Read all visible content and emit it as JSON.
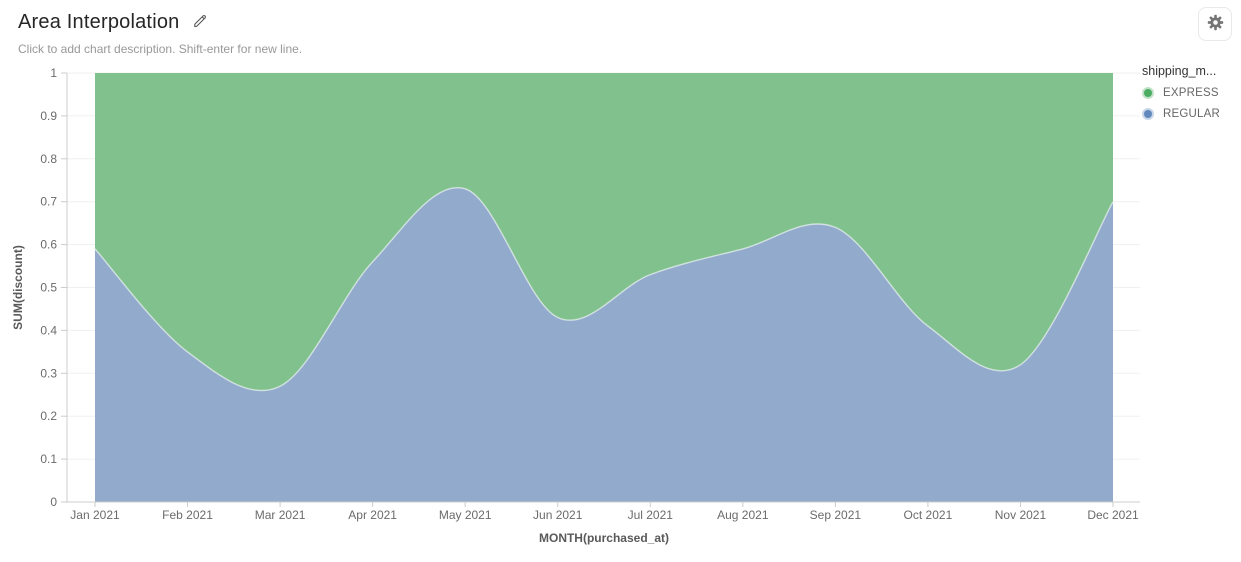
{
  "header": {
    "title": "Area Interpolation",
    "subtitle": "Click to add chart description. Shift-enter for new line."
  },
  "controls": {
    "edit_icon": "pencil-icon",
    "settings_icon": "gear-icon"
  },
  "legend": {
    "title": "shipping_m...",
    "items": [
      {
        "label": "EXPRESS",
        "color": "#4cac62"
      },
      {
        "label": "REGULAR",
        "color": "#6289be"
      }
    ]
  },
  "chart_data": {
    "type": "area",
    "stacked": true,
    "interpolation": "smooth",
    "title": "Area Interpolation",
    "x": [
      "Jan 2021",
      "Feb 2021",
      "Mar 2021",
      "Apr 2021",
      "May 2021",
      "Jun 2021",
      "Jul 2021",
      "Aug 2021",
      "Sep 2021",
      "Oct 2021",
      "Nov 2021",
      "Dec 2021"
    ],
    "series": [
      {
        "name": "REGULAR",
        "values": [
          0.59,
          0.35,
          0.27,
          0.56,
          0.73,
          0.43,
          0.53,
          0.59,
          0.64,
          0.41,
          0.32,
          0.7
        ],
        "area_fill": "#92abcc",
        "legend_color": "#6289be"
      },
      {
        "name": "EXPRESS",
        "values": [
          0.41,
          0.65,
          0.73,
          0.44,
          0.27,
          0.57,
          0.47,
          0.41,
          0.36,
          0.59,
          0.68,
          0.3
        ],
        "area_fill": "#81c18e",
        "legend_color": "#4cac62"
      }
    ],
    "stack_total": 1,
    "xlabel": "MONTH(purchased_at)",
    "ylabel": "SUM(discount)",
    "ylim": [
      0,
      1
    ],
    "y_ticks": [
      0,
      0.1,
      0.2,
      0.3,
      0.4,
      0.5,
      0.6,
      0.7,
      0.8,
      0.9,
      1
    ],
    "grid": true,
    "legend_position": "right",
    "colors": {
      "grid_line": "#f0f0f0",
      "axis_line": "#cccccc",
      "tick_label": "#6b6b6b",
      "axis_name": "#595959",
      "boundary_stroke": "rgba(255,255,255,0.6)"
    }
  }
}
